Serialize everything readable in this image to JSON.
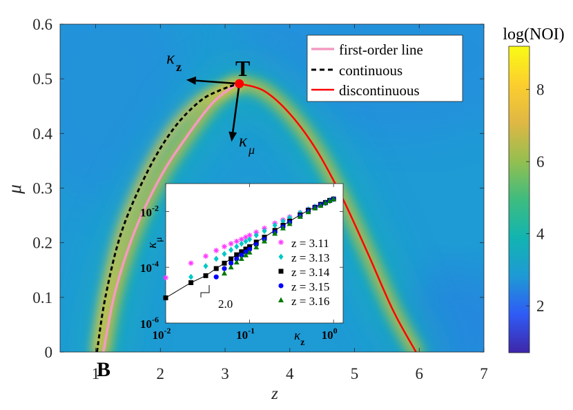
{
  "chart_data": [
    {
      "type": "heatmap",
      "xlabel": "z",
      "ylabel": "μ",
      "xlim": [
        0.45,
        7
      ],
      "ylim": [
        0,
        0.6
      ],
      "xticks": [
        "1",
        "2",
        "3",
        "4",
        "5",
        "6",
        "7"
      ],
      "xtick_values": [
        1,
        2,
        3,
        4,
        5,
        6,
        7
      ],
      "yticks": [
        "0",
        "0.1",
        "0.2",
        "0.3",
        "0.4",
        "0.5",
        "0.6"
      ],
      "ytick_values": [
        0,
        0.1,
        0.2,
        0.3,
        0.4,
        0.5,
        0.6
      ],
      "grid": false,
      "legend_position": "top-right",
      "colorbar": {
        "title": "log(NOI)",
        "ticks": [
          "2",
          "4",
          "6",
          "8"
        ],
        "tick_values": [
          2,
          4,
          6,
          8
        ],
        "range": [
          0.7,
          9.2
        ],
        "colormap": [
          "#3e26a8",
          "#2f5bf5",
          "#1e9ad5",
          "#12b4b1",
          "#3ebc7f",
          "#94bf50",
          "#dfb744",
          "#fcce2e",
          "#f9fb15"
        ]
      },
      "series": [
        {
          "name": "first-order line",
          "color": "#f49ac2",
          "style": "solid",
          "x": [
            1.12,
            1.3,
            1.6,
            2.0,
            2.4,
            2.8,
            3.1,
            3.22
          ],
          "y": [
            0,
            0.11,
            0.22,
            0.32,
            0.393,
            0.455,
            0.484,
            0.491
          ]
        },
        {
          "name": "continuous",
          "color": "#000000",
          "style": "dashed",
          "x": [
            1.02,
            1.15,
            1.4,
            1.8,
            2.2,
            2.6,
            2.9,
            3.2
          ],
          "y": [
            0,
            0.1,
            0.22,
            0.33,
            0.408,
            0.458,
            0.478,
            0.491
          ]
        },
        {
          "name": "discontinuous",
          "color": "#ff0000",
          "style": "solid",
          "x": [
            3.22,
            3.6,
            4.0,
            4.4,
            4.8,
            5.2,
            5.6,
            5.95
          ],
          "y": [
            0.491,
            0.478,
            0.436,
            0.372,
            0.285,
            0.182,
            0.075,
            0
          ]
        }
      ],
      "points": [
        {
          "label": "T",
          "x": 3.22,
          "y": 0.491,
          "color": "#ff0000"
        },
        {
          "label": "B",
          "x": 1.05,
          "y": 0
        }
      ],
      "vectors": [
        {
          "label": "κ",
          "subscript": "z",
          "from": [
            3.22,
            0.491
          ],
          "to": [
            2.4,
            0.498
          ]
        },
        {
          "label": "κ",
          "subscript": "μ",
          "from": [
            3.22,
            0.491
          ],
          "to": [
            3.1,
            0.385
          ]
        }
      ]
    },
    {
      "type": "scatter",
      "xlabel": "κ",
      "xlabel_sub": "z",
      "ylabel": "κ",
      "ylabel_sub": "μ",
      "xscale": "log",
      "yscale": "log",
      "xlim": [
        0.01,
        1.3
      ],
      "ylim": [
        1e-06,
        0.1
      ],
      "xticks": [
        "10",
        "10",
        "10"
      ],
      "xtick_exponents": [
        "-2",
        "-1",
        "0"
      ],
      "xtick_values": [
        0.01,
        0.1,
        1
      ],
      "yticks": [
        "10",
        "10",
        "10"
      ],
      "ytick_exponents": [
        "-6",
        "-4",
        "-2"
      ],
      "ytick_values": [
        1e-06,
        0.0001,
        0.01
      ],
      "legend_position": "right",
      "slope_annotation": "2.0",
      "series": [
        {
          "name": "z = 3.11",
          "marker": "asterisk",
          "color": "#ff33ff",
          "x": [
            0.01,
            0.02,
            0.03,
            0.04,
            0.05,
            0.06,
            0.07,
            0.08,
            0.09,
            0.1,
            0.12,
            0.15,
            0.2,
            0.25,
            0.3,
            0.4,
            0.5,
            0.6,
            0.7,
            0.8,
            0.9,
            1.0
          ],
          "y": [
            4.2e-05,
            0.00014,
            0.00025,
            0.0004,
            0.00055,
            0.0007,
            0.00085,
            0.001,
            0.0012,
            0.0014,
            0.0018,
            0.0025,
            0.0038,
            0.005,
            0.0064,
            0.009,
            0.012,
            0.015,
            0.018,
            0.021,
            0.025,
            0.028
          ]
        },
        {
          "name": "z = 3.13",
          "marker": "diamond",
          "color": "#00c8c8",
          "x": [
            0.02,
            0.03,
            0.04,
            0.05,
            0.06,
            0.07,
            0.08,
            0.09,
            0.1,
            0.12,
            0.15,
            0.2,
            0.25,
            0.3,
            0.4,
            0.5,
            0.6,
            0.7,
            0.8,
            0.9,
            1.0
          ],
          "y": [
            4.5e-05,
            0.00011,
            0.0002,
            0.0003,
            0.00042,
            0.00055,
            0.0007,
            0.00085,
            0.001,
            0.0014,
            0.002,
            0.0032,
            0.0045,
            0.006,
            0.009,
            0.012,
            0.015,
            0.018,
            0.021,
            0.025,
            0.028
          ]
        },
        {
          "name": "z = 3.14",
          "marker": "square",
          "color": "#000000",
          "line": true,
          "x": [
            0.01,
            0.02,
            0.03,
            0.04,
            0.05,
            0.06,
            0.07,
            0.08,
            0.09,
            0.1,
            0.12,
            0.15,
            0.2,
            0.25,
            0.3,
            0.4,
            0.5,
            0.6,
            0.7,
            0.8,
            0.9,
            1.0
          ],
          "y": [
            8e-06,
            2.8e-05,
            5e-05,
            9e-05,
            0.00014,
            0.0002,
            0.00028,
            0.00036,
            0.00045,
            0.00055,
            0.0008,
            0.0012,
            0.0021,
            0.0032,
            0.0045,
            0.0075,
            0.011,
            0.014,
            0.018,
            0.021,
            0.025,
            0.028
          ]
        },
        {
          "name": "z = 3.15",
          "marker": "circle",
          "color": "#0000ff",
          "x": [
            0.04,
            0.05,
            0.06,
            0.07,
            0.08,
            0.09,
            0.1,
            0.12,
            0.15,
            0.2,
            0.25,
            0.3,
            0.4,
            0.5,
            0.6,
            0.7,
            0.8,
            0.9,
            1.0
          ],
          "y": [
            4.5e-05,
            9e-05,
            0.00014,
            0.0002,
            0.00027,
            0.00035,
            0.00044,
            0.00065,
            0.001,
            0.0018,
            0.0028,
            0.004,
            0.007,
            0.01,
            0.0135,
            0.017,
            0.02,
            0.024,
            0.028
          ]
        },
        {
          "name": "z = 3.16",
          "marker": "triangle",
          "color": "#007a00",
          "x": [
            0.05,
            0.06,
            0.07,
            0.08,
            0.09,
            0.1,
            0.12,
            0.15,
            0.2,
            0.25,
            0.3,
            0.4,
            0.5,
            0.6,
            0.7,
            0.8,
            0.9,
            1.0
          ],
          "y": [
            6e-05,
            0.0001,
            0.00015,
            0.0002,
            0.00027,
            0.00034,
            0.00052,
            0.00085,
            0.0016,
            0.0025,
            0.0036,
            0.0065,
            0.0095,
            0.013,
            0.016,
            0.02,
            0.024,
            0.028
          ]
        }
      ]
    }
  ]
}
